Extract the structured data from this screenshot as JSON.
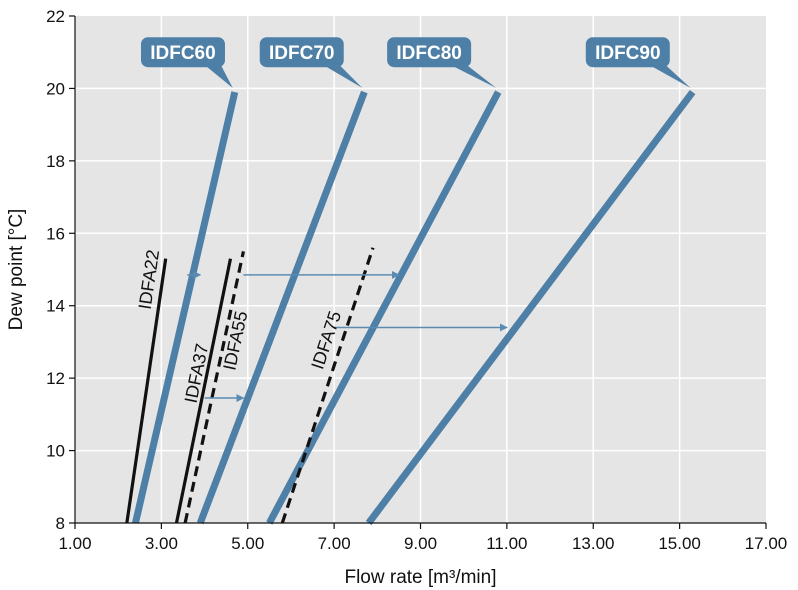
{
  "colors": {
    "plot_bg": "#e5e5e5",
    "grid": "#ffffff",
    "idfc": "#4e7fa6",
    "idfa": "#111111",
    "arrow": "#5a8cb3"
  },
  "chart_data": {
    "type": "line",
    "xlabel": "Flow rate [m³/min]",
    "ylabel": "Dew point [°C]",
    "xlim": [
      1,
      17
    ],
    "ylim": [
      8,
      22
    ],
    "xticks": [
      "1.00",
      "3.00",
      "5.00",
      "7.00",
      "9.00",
      "11.00",
      "13.00",
      "15.00",
      "17.00"
    ],
    "yticks": [
      "8",
      "10",
      "12",
      "14",
      "16",
      "18",
      "20",
      "22"
    ],
    "grid": true,
    "series": [
      {
        "name": "IDFC60",
        "style": "thick",
        "x": [
          2.4,
          4.7
        ],
        "y": [
          8,
          19.9
        ]
      },
      {
        "name": "IDFC70",
        "style": "thick",
        "x": [
          3.9,
          7.7
        ],
        "y": [
          8,
          19.9
        ]
      },
      {
        "name": "IDFC80",
        "style": "thick",
        "x": [
          5.5,
          10.8
        ],
        "y": [
          8,
          19.9
        ]
      },
      {
        "name": "IDFC90",
        "style": "thick",
        "x": [
          7.8,
          15.3
        ],
        "y": [
          8,
          19.9
        ]
      },
      {
        "name": "IDFA22",
        "style": "solid",
        "x": [
          2.2,
          3.1
        ],
        "y": [
          8,
          15.3
        ]
      },
      {
        "name": "IDFA37",
        "style": "solid",
        "x": [
          3.35,
          4.6
        ],
        "y": [
          8,
          15.3
        ]
      },
      {
        "name": "IDFA55",
        "style": "dashed",
        "x": [
          3.55,
          4.9
        ],
        "y": [
          8,
          15.5
        ]
      },
      {
        "name": "IDFA75",
        "style": "dashed",
        "x": [
          5.8,
          7.9
        ],
        "y": [
          8,
          15.6
        ]
      }
    ],
    "callouts": [
      {
        "text": "IDFC60",
        "series": "IDFC60",
        "label_x": 3.5,
        "label_y": 21.0
      },
      {
        "text": "IDFC70",
        "series": "IDFC70",
        "label_x": 6.25,
        "label_y": 21.0
      },
      {
        "text": "IDFC80",
        "series": "IDFC80",
        "label_x": 9.2,
        "label_y": 21.0
      },
      {
        "text": "IDFC90",
        "series": "IDFC90",
        "label_x": 13.8,
        "label_y": 21.0
      }
    ],
    "series_labels": [
      {
        "text": "IDFA22",
        "series": "IDFA22",
        "x": 2.85,
        "y": 14.7
      },
      {
        "text": "IDFA37",
        "series": "IDFA37",
        "x": 3.95,
        "y": 12.1
      },
      {
        "text": "IDFA55",
        "series": "IDFA55",
        "x": 4.85,
        "y": 13.0
      },
      {
        "text": "IDFA75",
        "series": "IDFA75",
        "x": 6.95,
        "y": 13.0
      }
    ],
    "arrows": [
      {
        "from": [
          3.6,
          14.85
        ],
        "to": [
          3.9,
          14.85
        ]
      },
      {
        "from": [
          4.9,
          14.85
        ],
        "to": [
          8.5,
          14.85
        ]
      },
      {
        "from": [
          4.0,
          11.45
        ],
        "to": [
          4.9,
          11.45
        ]
      },
      {
        "from": [
          7.0,
          13.4
        ],
        "to": [
          11.0,
          13.4
        ]
      }
    ]
  }
}
